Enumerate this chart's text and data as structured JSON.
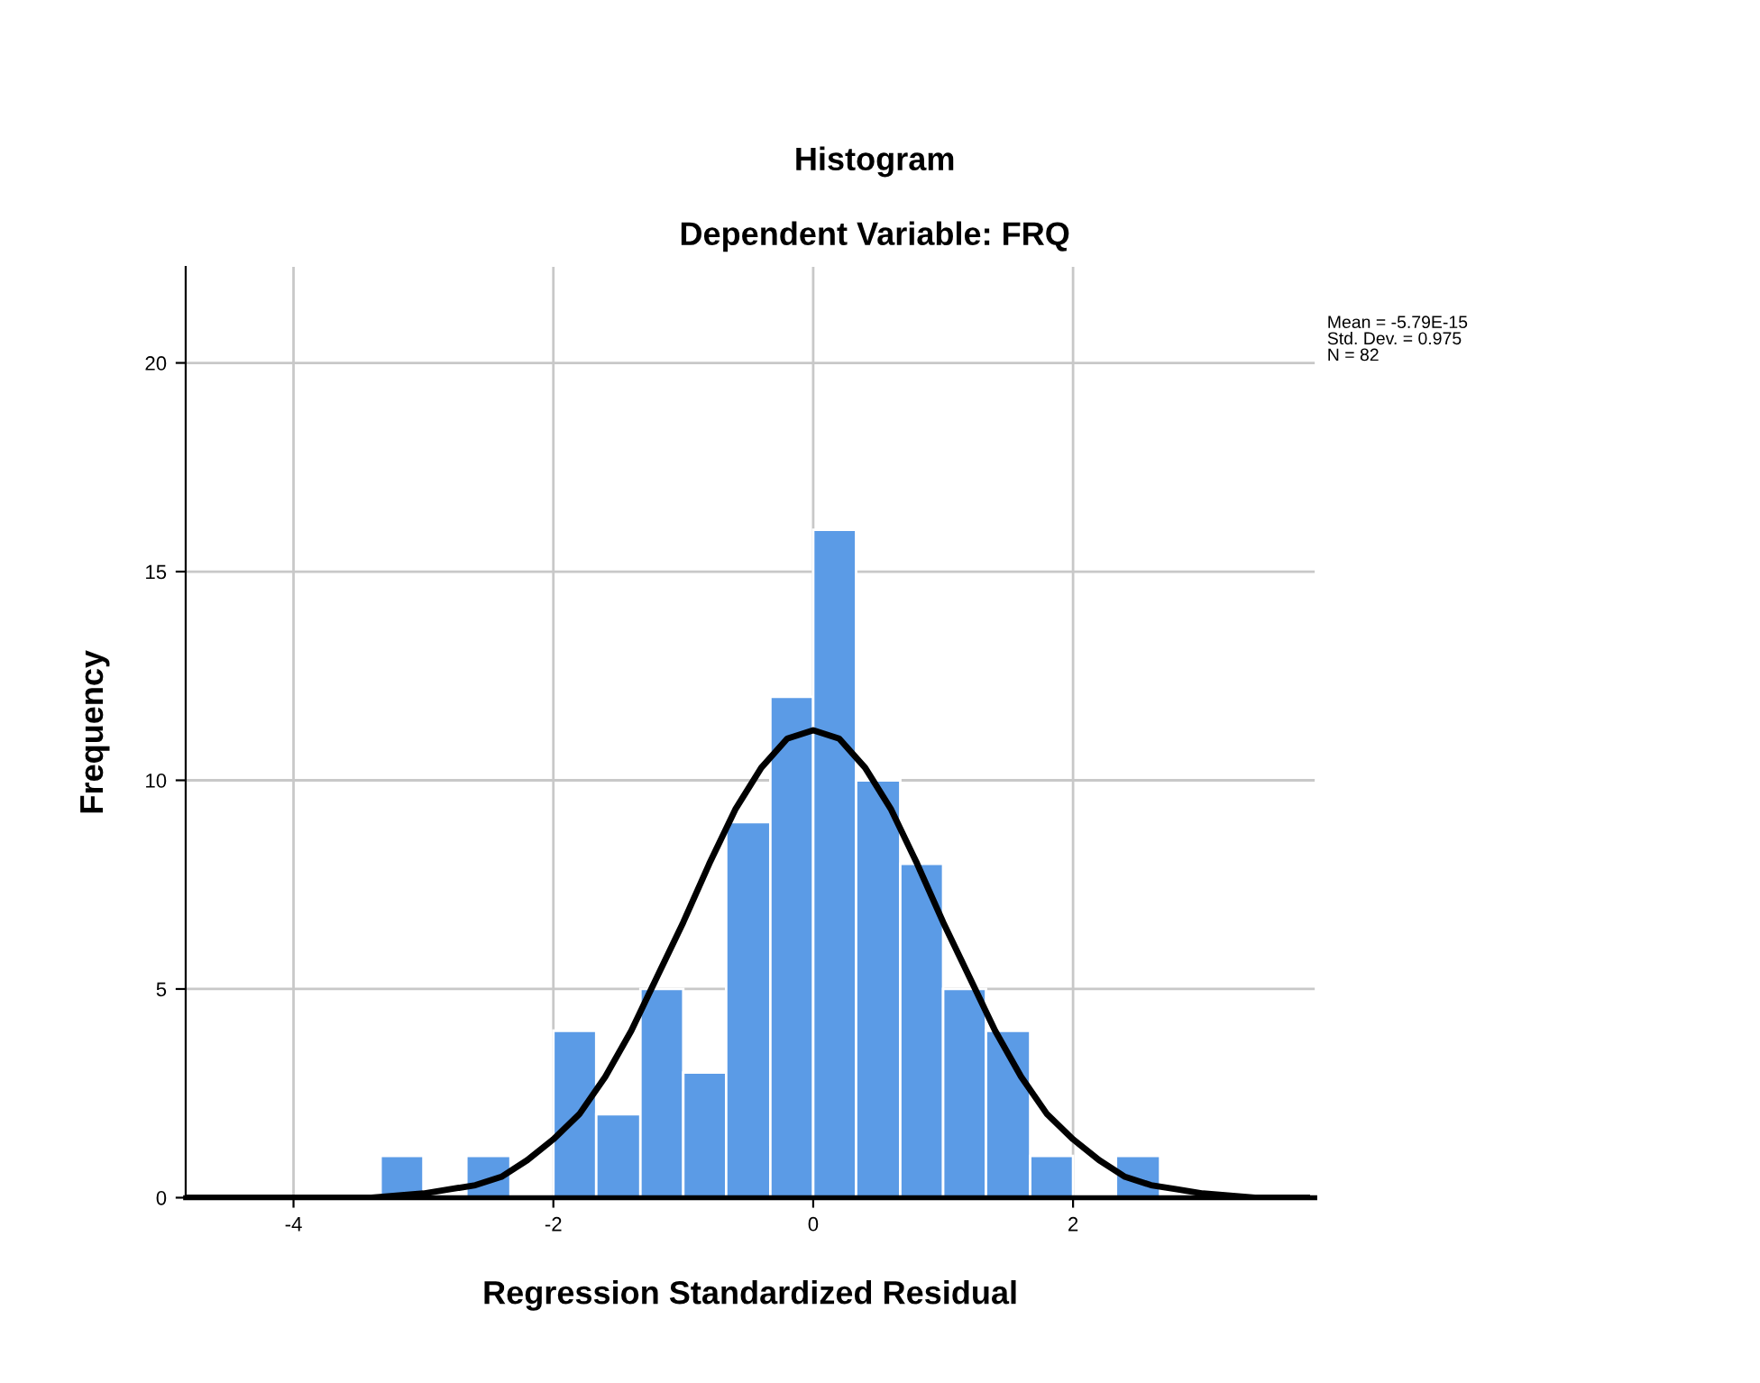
{
  "chart_data": {
    "type": "histogram",
    "title": "Histogram",
    "subtitle": "Dependent Variable: FRQ",
    "xlabel": "Regression Standardized Residual",
    "ylabel": "Frequency",
    "bins": [
      -3.33,
      -3,
      -2.67,
      -2.33,
      -2,
      -1.67,
      -1.33,
      -1,
      -0.67,
      -0.33,
      0,
      0.33,
      0.67,
      1,
      1.33,
      1.67,
      2,
      2.33,
      2.67
    ],
    "values": [
      1,
      0,
      1,
      0,
      4,
      2,
      5,
      3,
      9,
      12,
      16,
      10,
      8,
      5,
      4,
      1,
      0,
      1
    ],
    "color": "#5b9be6",
    "series": [
      {
        "type": "line",
        "color": "#000000",
        "x": [
          -4.8,
          -4.2,
          -3.8,
          -3.4,
          -3.0,
          -2.8,
          -2.6,
          -2.4,
          -2.2,
          -2.0,
          -1.8,
          -1.6,
          -1.4,
          -1.2,
          -1.0,
          -0.8,
          -0.6,
          -0.4,
          -0.2,
          0,
          0.2,
          0.4,
          0.6,
          0.8,
          1.0,
          1.2,
          1.4,
          1.6,
          1.8,
          2.0,
          2.2,
          2.4,
          2.6,
          2.8,
          3.0,
          3.4,
          3.8
        ],
        "values": [
          0,
          0,
          0,
          0,
          0.1,
          0.2,
          0.3,
          0.5,
          0.9,
          1.4,
          2.0,
          2.9,
          4.0,
          5.3,
          6.6,
          8.0,
          9.3,
          10.3,
          11.0,
          11.2,
          11.0,
          10.3,
          9.3,
          8.0,
          6.6,
          5.3,
          4.0,
          2.9,
          2.0,
          1.4,
          0.9,
          0.5,
          0.3,
          0.2,
          0.1,
          0,
          0
        ]
      }
    ],
    "annotations": [
      "Mean = -5.79E-15\nStd. Dev. = 0.975\nN = 82"
    ],
    "xlim": [
      -4.83,
      3.86
    ],
    "ylim": [
      0,
      22.3
    ],
    "xticks": [
      -4,
      -2,
      0,
      2
    ],
    "yticks": [
      0,
      5,
      10,
      15,
      20
    ],
    "grid": true,
    "legend": false
  }
}
